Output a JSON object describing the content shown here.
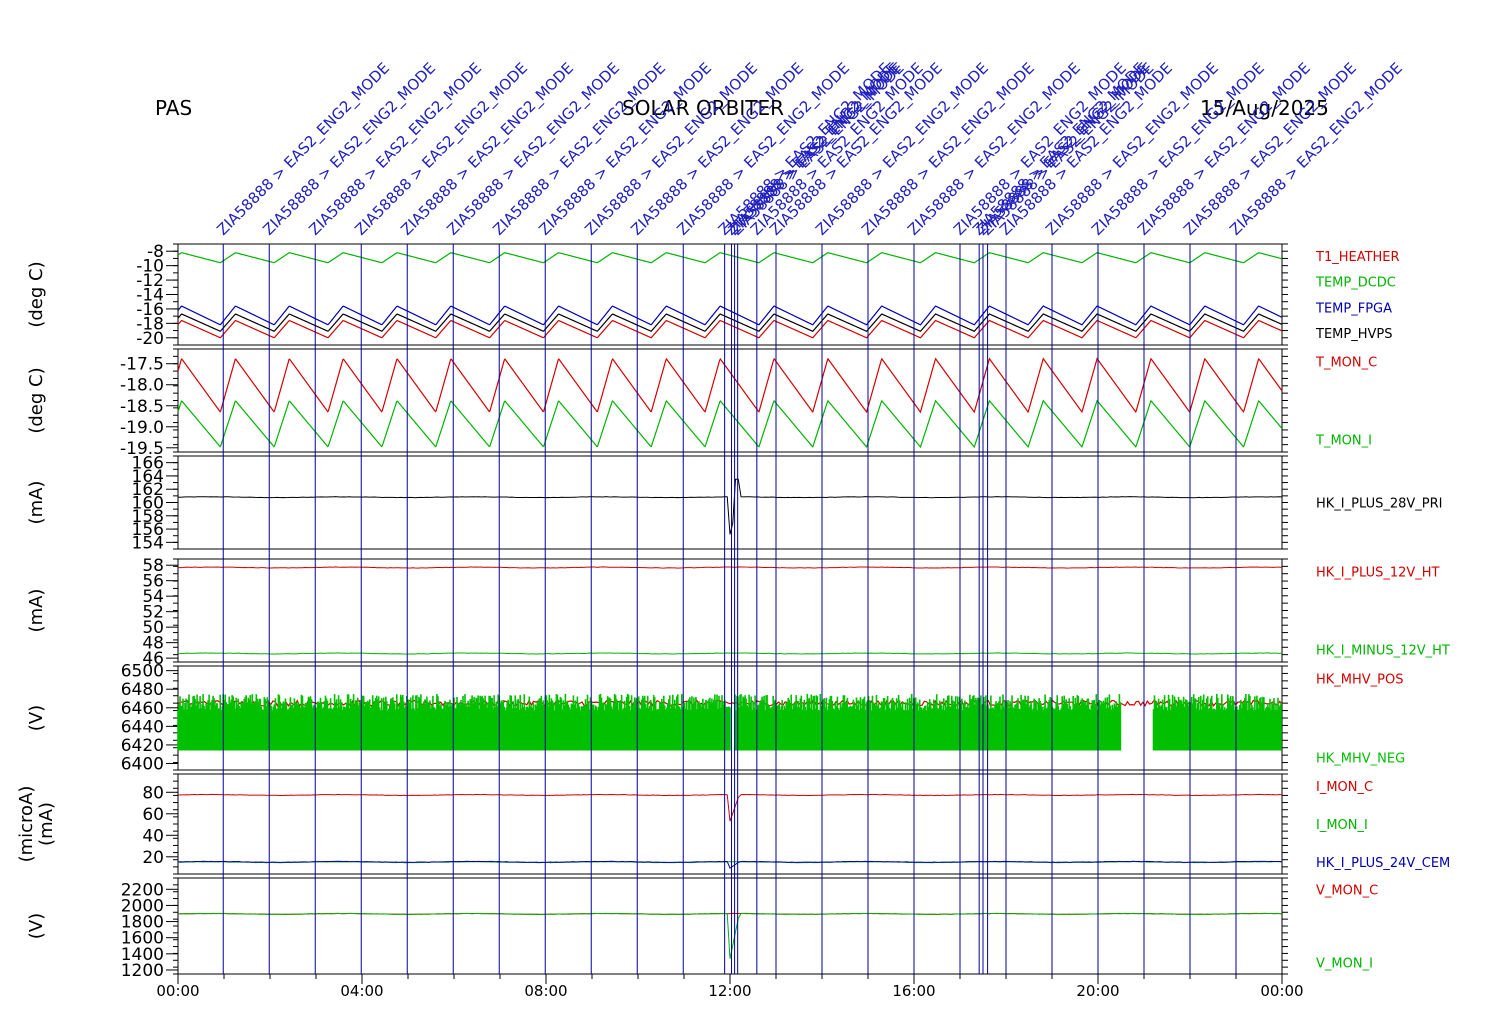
{
  "header": {
    "left": "PAS",
    "center": "SOLAR ORBITER",
    "right": "15/Aug/2025"
  },
  "annotations": {
    "event_prefix": "ZIA58888",
    "event_text": "> EAS2_ENG2_MODE",
    "event_lines": [
      "00:59",
      "01:59",
      "02:59",
      "03:59",
      "04:59",
      "05:59",
      "06:59",
      "07:59",
      "08:59",
      "09:59",
      "10:59",
      "11:53",
      "12:02",
      "12:06",
      "12:10",
      "12:35",
      "13:00",
      "14:00",
      "15:00",
      "16:00",
      "17:00",
      "17:25",
      "17:30",
      "17:36",
      "18:00",
      "19:00",
      "20:00",
      "21:00",
      "22:00",
      "23:00"
    ]
  },
  "x_axis": {
    "start": "00:00",
    "end": "24:00",
    "ticks": [
      "00:00",
      "04:00",
      "08:00",
      "12:00",
      "16:00",
      "20:00",
      "00:00"
    ]
  },
  "chart_data": [
    {
      "type": "line",
      "id": "temps",
      "ylabel": "(deg C)",
      "yticks": [
        "-8",
        "-10",
        "-12",
        "-14",
        "-16",
        "-18",
        "-20"
      ],
      "ylim": [
        -21,
        -7
      ],
      "series": [
        {
          "name": "T1_HEATHER",
          "color": "#d40000",
          "min": -20.0,
          "max": -17.6,
          "shape": "sawtooth"
        },
        {
          "name": "TEMP_DCDC",
          "color": "#00b400",
          "min": -9.6,
          "max": -8.2,
          "shape": "sawtooth"
        },
        {
          "name": "TEMP_FPGA",
          "color": "#0000b4",
          "min": -18.2,
          "max": -15.6,
          "shape": "sawtooth"
        },
        {
          "name": "TEMP_HVPS",
          "color": "#000000",
          "min": -19.1,
          "max": -16.7,
          "shape": "sawtooth"
        }
      ]
    },
    {
      "type": "line",
      "id": "tmon",
      "ylabel": "(deg C)",
      "yticks": [
        "-17.5",
        "-18.0",
        "-18.5",
        "-19.0",
        "-19.5"
      ],
      "ylim": [
        -19.6,
        -17.15
      ],
      "series": [
        {
          "name": "T_MON_C",
          "color": "#d40000",
          "min": -18.65,
          "max": -17.38,
          "shape": "sawtooth"
        },
        {
          "name": "T_MON_I",
          "color": "#00b400",
          "min": -19.48,
          "max": -18.38,
          "shape": "sawtooth"
        }
      ]
    },
    {
      "type": "line",
      "id": "i28",
      "ylabel": "(mA)",
      "yticks": [
        "166",
        "164",
        "162",
        "160",
        "158",
        "156",
        "154"
      ],
      "ylim": [
        153,
        167
      ],
      "series": [
        {
          "name": "HK_I_PLUS_28V_PRI",
          "color": "#000000",
          "level": 160.8,
          "dip": 153.8,
          "spike": 163.5,
          "shape": "flat"
        }
      ]
    },
    {
      "type": "line",
      "id": "i12",
      "ylabel": "(mA)",
      "yticks": [
        "58",
        "56",
        "54",
        "52",
        "50",
        "48",
        "46"
      ],
      "ylim": [
        45.5,
        58.8
      ],
      "series": [
        {
          "name": "HK_I_PLUS_12V_HT",
          "color": "#d40000",
          "level": 57.7,
          "shape": "flat"
        },
        {
          "name": "HK_I_MINUS_12V_HT",
          "color": "#00b400",
          "level": 46.6,
          "shape": "flat"
        }
      ]
    },
    {
      "type": "line",
      "id": "mhv",
      "ylabel": "(V)",
      "yticks": [
        "6500",
        "6480",
        "6460",
        "6440",
        "6420",
        "6400"
      ],
      "ylim": [
        6393,
        6505
      ],
      "series": [
        {
          "name": "HK_MHV_POS",
          "color": "#d40000",
          "level": 6465,
          "shape": "noisy"
        },
        {
          "name": "HK_MHV_NEG",
          "color": "#00c000",
          "low": 6414,
          "high": 6475,
          "shape": "noisy"
        }
      ]
    },
    {
      "type": "line",
      "id": "imon",
      "ylabel": "(microA)\n(mA)",
      "yticks": [
        "80",
        "60",
        "40",
        "20"
      ],
      "ylim": [
        4,
        97
      ],
      "series": [
        {
          "name": "I_MON_C",
          "color": "#d40000",
          "level": 77.5,
          "dip": 47,
          "shape": "flat"
        },
        {
          "name": "I_MON_I",
          "color": "#00b400",
          "level": 15,
          "shape": "flat"
        },
        {
          "name": "HK_I_PLUS_24V_CEM",
          "color": "#0000b4",
          "level": 15.3,
          "dip": 8,
          "shape": "flat"
        }
      ]
    },
    {
      "type": "line",
      "id": "vmon",
      "ylabel": "(V)",
      "yticks": [
        "2200",
        "2000",
        "1800",
        "1600",
        "1400",
        "1200"
      ],
      "ylim": [
        1150,
        2340
      ],
      "series": [
        {
          "name": "V_MON_C",
          "color": "#d40000",
          "level": 1895,
          "shape": "flat"
        },
        {
          "name": "V_MON_I",
          "color": "#00b400",
          "level": 1895,
          "dip": 1200,
          "shape": "flat"
        }
      ]
    }
  ]
}
